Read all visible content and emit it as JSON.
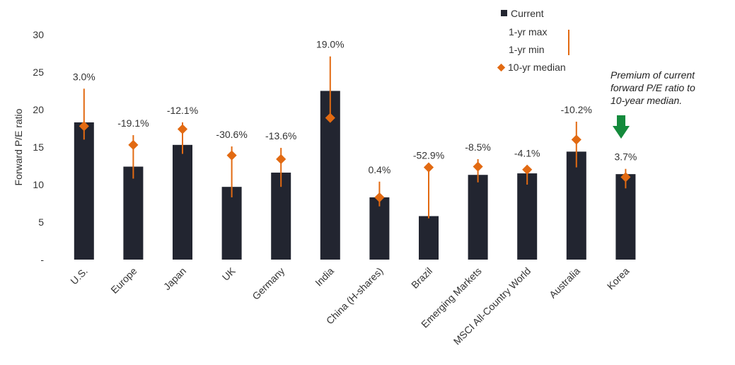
{
  "chart_data": {
    "type": "bar",
    "ylabel": "Forward P/E ratio",
    "ylim": [
      0,
      30
    ],
    "yticks": [
      {
        "value": 0,
        "label": "-"
      },
      {
        "value": 5,
        "label": "5"
      },
      {
        "value": 10,
        "label": "10"
      },
      {
        "value": 15,
        "label": "15"
      },
      {
        "value": 20,
        "label": "20"
      },
      {
        "value": 25,
        "label": "25"
      },
      {
        "value": 30,
        "label": "30"
      }
    ],
    "categories": [
      "U.S.",
      "Europe",
      "Japan",
      "UK",
      "Germany",
      "India",
      "China (H-shares)",
      "Brazil",
      "Emerging Markets",
      "MSCI All-Country World",
      "Australia",
      "Korea"
    ],
    "series": [
      {
        "name": "Current",
        "values": [
          18.3,
          12.4,
          15.3,
          9.7,
          11.6,
          22.5,
          8.3,
          5.8,
          11.3,
          11.5,
          14.4,
          11.4
        ]
      },
      {
        "name": "1-yr max",
        "values": [
          22.8,
          16.6,
          18.3,
          15.1,
          14.9,
          27.1,
          10.4,
          12.3,
          13.4,
          12.6,
          18.4,
          12.1
        ]
      },
      {
        "name": "1-yr min",
        "values": [
          16.0,
          10.8,
          14.1,
          8.3,
          9.7,
          18.6,
          7.1,
          5.5,
          10.3,
          10.0,
          12.3,
          9.5
        ]
      },
      {
        "name": "10-yr median",
        "values": [
          17.8,
          15.3,
          17.4,
          13.9,
          13.4,
          18.9,
          8.3,
          12.3,
          12.4,
          12.0,
          16.0,
          11.0
        ]
      }
    ],
    "premium_labels": [
      "3.0%",
      "-19.1%",
      "-12.1%",
      "-30.6%",
      "-13.6%",
      "19.0%",
      "0.4%",
      "-52.9%",
      "-8.5%",
      "-4.1%",
      "-10.2%",
      "3.7%"
    ],
    "legend": {
      "placement": "top-right",
      "items": [
        "Current",
        "1-yr max",
        "1-yr min",
        "10-yr median"
      ]
    },
    "annotation": [
      "Premium of current",
      "forward P/E ratio to",
      "10-year median."
    ],
    "grid": false
  },
  "colors": {
    "bar": "#222530",
    "range": "#E26A12",
    "median": "#E26A12",
    "arrow": "#148A3C",
    "text": "#333333"
  },
  "icons": {
    "annotation_arrow": "down-arrow-icon"
  }
}
